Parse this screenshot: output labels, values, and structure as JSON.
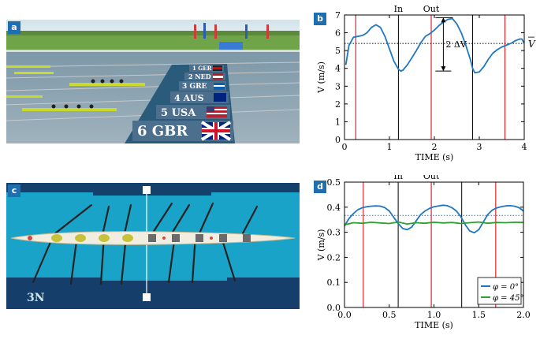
{
  "panels": {
    "a": {
      "label": "a",
      "lane_labels": [
        "1 GER",
        "2 NED",
        "3 GRE",
        "4 AUS",
        "5 USA",
        "6 GBR"
      ]
    },
    "b": {
      "label": "b"
    },
    "c": {
      "label": "c",
      "boat_marks": "3N"
    },
    "d": {
      "label": "d"
    }
  },
  "colors": {
    "blue": "#1f77c2",
    "green": "#2ca02c",
    "red": "#e0242b",
    "black": "#000000",
    "label_bg": "#1d6fb2",
    "pool": "#1aa3c8"
  },
  "chart_data": [
    {
      "id": "b",
      "type": "line",
      "xlabel": "TIME (s)",
      "ylabel": "V (m/s)",
      "xlim": [
        0,
        4
      ],
      "ylim": [
        0,
        7
      ],
      "xticks": [
        0,
        1,
        2,
        3,
        4
      ],
      "yticks": [
        0,
        1,
        2,
        3,
        4,
        5,
        6,
        7
      ],
      "series": [
        {
          "color": "#1f77c2",
          "x": [
            0.03,
            0.1,
            0.2,
            0.3,
            0.4,
            0.5,
            0.6,
            0.7,
            0.8,
            0.9,
            1.0,
            1.1,
            1.2,
            1.25,
            1.3,
            1.4,
            1.5,
            1.6,
            1.7,
            1.8,
            1.9,
            2.0,
            2.1,
            2.2,
            2.3,
            2.4,
            2.5,
            2.6,
            2.7,
            2.8,
            2.85,
            2.9,
            3.0,
            3.1,
            3.2,
            3.3,
            3.4,
            3.5,
            3.6,
            3.7,
            3.8,
            3.9,
            3.95,
            4.0
          ],
          "y": [
            4.2,
            5.3,
            5.75,
            5.8,
            5.85,
            6.0,
            6.3,
            6.45,
            6.3,
            5.8,
            5.1,
            4.4,
            3.95,
            3.85,
            3.9,
            4.2,
            4.6,
            5.0,
            5.45,
            5.8,
            5.95,
            6.15,
            6.4,
            6.6,
            6.75,
            6.8,
            6.5,
            6.0,
            5.3,
            4.5,
            4.0,
            3.75,
            3.8,
            4.1,
            4.5,
            4.85,
            5.05,
            5.2,
            5.3,
            5.4,
            5.55,
            5.65,
            5.65,
            5.4
          ]
        }
      ],
      "mean_line": {
        "y": 5.4,
        "label": "V",
        "style": "dotted"
      },
      "red_lines": [
        0.25,
        1.93,
        3.57
      ],
      "black_lines": [
        1.2,
        2.85
      ],
      "phase_labels": [
        {
          "text": "In",
          "x": 1.2
        },
        {
          "text": "Out",
          "x": 1.93
        }
      ],
      "annotation": {
        "text": "2 ΔV",
        "x": 2.2,
        "y_low": 3.85,
        "y_high": 6.85
      }
    },
    {
      "id": "d",
      "type": "line",
      "xlabel": "TIME (s)",
      "ylabel": "V (m/s)",
      "xlim": [
        0,
        2.0
      ],
      "ylim": [
        0,
        0.5
      ],
      "xticks": [
        0,
        0.5,
        1.0,
        1.5,
        2.0
      ],
      "yticks": [
        0,
        0.1,
        0.2,
        0.3,
        0.4,
        0.5
      ],
      "series": [
        {
          "name": "φ = 0°",
          "color": "#1f77c2",
          "x": [
            0,
            0.05,
            0.1,
            0.15,
            0.2,
            0.25,
            0.3,
            0.35,
            0.4,
            0.45,
            0.5,
            0.55,
            0.6,
            0.65,
            0.7,
            0.75,
            0.8,
            0.85,
            0.9,
            0.95,
            1.0,
            1.05,
            1.1,
            1.15,
            1.2,
            1.25,
            1.3,
            1.35,
            1.4,
            1.45,
            1.5,
            1.55,
            1.6,
            1.65,
            1.7,
            1.75,
            1.8,
            1.85,
            1.9,
            1.95,
            2.0
          ],
          "y": [
            0.325,
            0.355,
            0.375,
            0.39,
            0.398,
            0.402,
            0.404,
            0.405,
            0.404,
            0.398,
            0.385,
            0.36,
            0.335,
            0.315,
            0.31,
            0.32,
            0.345,
            0.37,
            0.385,
            0.395,
            0.402,
            0.405,
            0.408,
            0.406,
            0.398,
            0.385,
            0.362,
            0.33,
            0.305,
            0.298,
            0.31,
            0.34,
            0.37,
            0.388,
            0.397,
            0.402,
            0.405,
            0.406,
            0.404,
            0.398,
            0.385
          ]
        },
        {
          "name": "φ = 45°",
          "color": "#2ca02c",
          "x": [
            0,
            0.1,
            0.2,
            0.3,
            0.4,
            0.5,
            0.6,
            0.7,
            0.8,
            0.9,
            1.0,
            1.1,
            1.2,
            1.3,
            1.4,
            1.5,
            1.6,
            1.7,
            1.8,
            1.9,
            2.0
          ],
          "y": [
            0.33,
            0.338,
            0.336,
            0.34,
            0.337,
            0.335,
            0.341,
            0.333,
            0.338,
            0.336,
            0.34,
            0.337,
            0.339,
            0.335,
            0.338,
            0.341,
            0.336,
            0.339,
            0.338,
            0.34,
            0.339
          ]
        }
      ],
      "mean_line": {
        "y": 0.367,
        "style": "dotted"
      },
      "red_lines": [
        0.21,
        0.97,
        1.69
      ],
      "black_lines": [
        0.6,
        1.31
      ],
      "phase_labels": [
        {
          "text": "In",
          "x": 0.6
        },
        {
          "text": "Out",
          "x": 0.97
        }
      ],
      "legend": {
        "placement": "bottom-right"
      }
    }
  ]
}
